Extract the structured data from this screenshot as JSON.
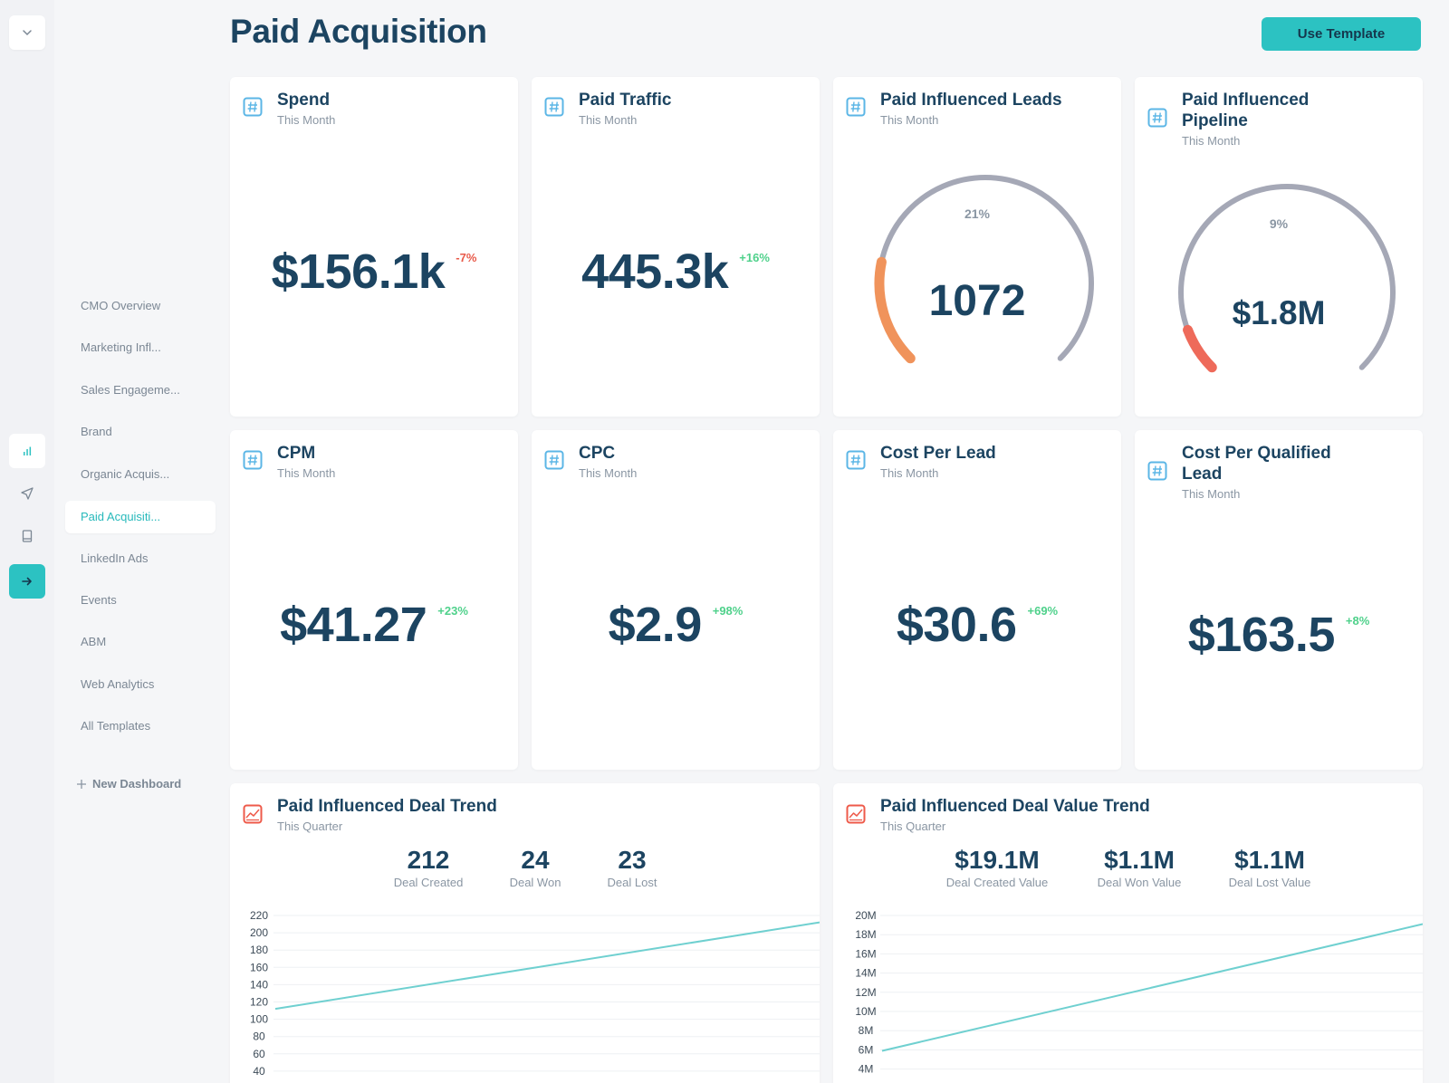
{
  "page_title": "Paid Acquisition",
  "header": {
    "use_template_label": "Use Template"
  },
  "sidebar": {
    "items": [
      {
        "label": "CMO Overview",
        "active": false
      },
      {
        "label": "Marketing Infl...",
        "active": false
      },
      {
        "label": "Sales Engageme...",
        "active": false
      },
      {
        "label": "Brand",
        "active": false
      },
      {
        "label": "Organic Acquis...",
        "active": false
      },
      {
        "label": "Paid Acquisiti...",
        "active": true
      },
      {
        "label": "LinkedIn Ads",
        "active": false
      },
      {
        "label": "Events",
        "active": false
      },
      {
        "label": "ABM",
        "active": false
      },
      {
        "label": "Web Analytics",
        "active": false
      },
      {
        "label": "All Templates",
        "active": false
      }
    ],
    "new_dashboard_label": "New Dashboard"
  },
  "colors": {
    "accent": "#2cc2c2",
    "title": "#1c4461",
    "negative": "#e85a4a",
    "positive": "#4fd18b",
    "gauge_track": "#a5a8b6",
    "gauge_orange": "#f0935b",
    "gauge_red": "#ee6a5a",
    "line": "#6fd0d0",
    "icon_blue": "#5bb6e6",
    "icon_red": "#ee5a4a"
  },
  "metrics": [
    {
      "title": "Spend",
      "subtitle": "This Month",
      "value": "$156.1k",
      "delta": "-7%",
      "delta_sign": "neg",
      "icon": "hash-icon"
    },
    {
      "title": "Paid Traffic",
      "subtitle": "This Month",
      "value": "445.3k",
      "delta": "+16%",
      "delta_sign": "pos",
      "icon": "hash-icon"
    },
    {
      "title": "CPM",
      "subtitle": "This Month",
      "value": "$41.27",
      "delta": "+23%",
      "delta_sign": "pos",
      "icon": "hash-icon"
    },
    {
      "title": "CPC",
      "subtitle": "This Month",
      "value": "$2.9",
      "delta": "+98%",
      "delta_sign": "pos",
      "icon": "hash-icon"
    },
    {
      "title": "Cost Per Lead",
      "subtitle": "This Month",
      "value": "$30.6",
      "delta": "+69%",
      "delta_sign": "pos",
      "icon": "hash-icon"
    },
    {
      "title": "Cost Per Qualified Lead",
      "subtitle": "This Month",
      "value": "$163.5",
      "delta": "+8%",
      "delta_sign": "pos",
      "icon": "hash-icon"
    }
  ],
  "gauges": [
    {
      "title": "Paid Influenced Leads",
      "subtitle": "This Month",
      "value": "1072",
      "percent_label": "21%",
      "fraction": 0.21,
      "icon": "hash-icon"
    },
    {
      "title": "Paid Influenced Pipeline",
      "subtitle": "This Month",
      "value": "$1.8M",
      "percent_label": "9%",
      "fraction": 0.09,
      "icon": "hash-icon"
    }
  ],
  "trends": [
    {
      "title": "Paid Influenced Deal Trend",
      "subtitle": "This Quarter",
      "icon": "line-chart-icon",
      "kpis": [
        {
          "value": "212",
          "label": "Deal Created"
        },
        {
          "value": "24",
          "label": "Deal Won"
        },
        {
          "value": "23",
          "label": "Deal Lost"
        }
      ]
    },
    {
      "title": "Paid Influenced Deal Value Trend",
      "subtitle": "This Quarter",
      "icon": "line-chart-icon",
      "kpis": [
        {
          "value": "$19.1M",
          "label": "Deal Created Value"
        },
        {
          "value": "$1.1M",
          "label": "Deal Won Value"
        },
        {
          "value": "$1.1M",
          "label": "Deal Lost Value"
        }
      ]
    }
  ],
  "chart_data": [
    {
      "type": "line",
      "yticks": [
        "220",
        "200",
        "180",
        "160",
        "140",
        "120",
        "100",
        "80",
        "60",
        "40"
      ],
      "tick_values": [
        220,
        200,
        180,
        160,
        140,
        120,
        100,
        80,
        60,
        40
      ],
      "series": [
        {
          "values": [
            112,
            212
          ]
        }
      ],
      "grid": true
    },
    {
      "type": "line",
      "yticks": [
        "20M",
        "18M",
        "16M",
        "14M",
        "12M",
        "10M",
        "8M",
        "6M",
        "4M"
      ],
      "tick_values": [
        20,
        18,
        16,
        14,
        12,
        10,
        8,
        6,
        4
      ],
      "series": [
        {
          "values": [
            5.9,
            19.1
          ]
        }
      ],
      "grid": true
    }
  ]
}
